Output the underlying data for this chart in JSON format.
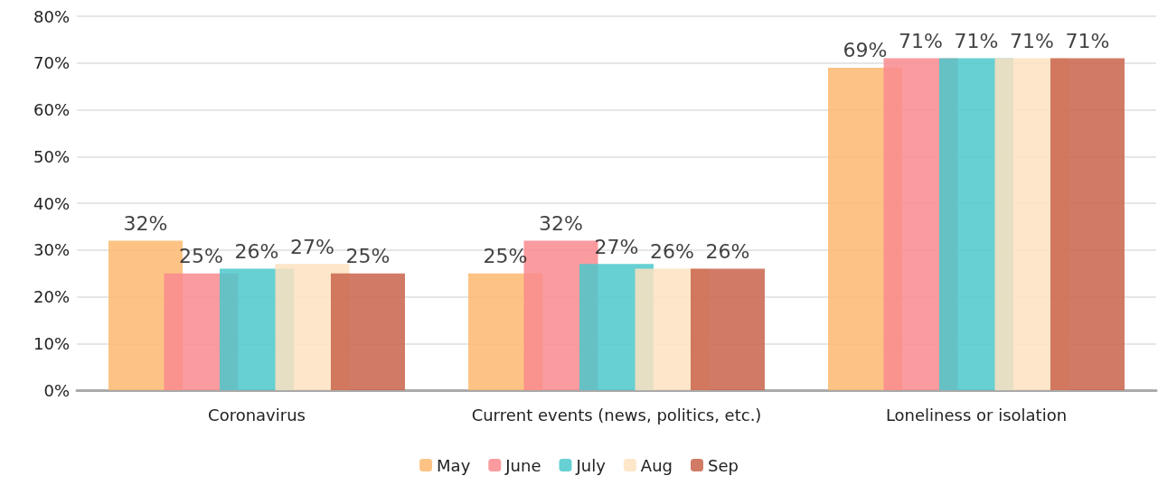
{
  "chart_data": {
    "type": "bar",
    "categories": [
      "Coronavirus",
      "Current events (news, politics, etc.)",
      "Loneliness or isolation"
    ],
    "series": [
      {
        "name": "May",
        "color": "#fdb96e",
        "values": [
          32,
          25,
          69
        ],
        "value_labels": [
          "32%",
          "25%",
          "69%"
        ]
      },
      {
        "name": "June",
        "color": "#f98a8e",
        "values": [
          25,
          32,
          71
        ],
        "value_labels": [
          "25%",
          "32%",
          "71%"
        ]
      },
      {
        "name": "July",
        "color": "#4bc8cb",
        "values": [
          26,
          27,
          71
        ],
        "value_labels": [
          "26%",
          "27%",
          "71%"
        ]
      },
      {
        "name": "Aug",
        "color": "#fde2c0",
        "values": [
          27,
          26,
          71
        ],
        "value_labels": [
          "27%",
          "26%",
          "71%"
        ]
      },
      {
        "name": "Sep",
        "color": "#c9644b",
        "values": [
          25,
          26,
          71
        ],
        "value_labels": [
          "25%",
          "26%",
          "71%"
        ]
      }
    ],
    "ylim": [
      0,
      80
    ],
    "yticks": [
      {
        "value": 0,
        "label": "0%"
      },
      {
        "value": 10,
        "label": "10%"
      },
      {
        "value": 20,
        "label": "20%"
      },
      {
        "value": 30,
        "label": "30%"
      },
      {
        "value": 40,
        "label": "40%"
      },
      {
        "value": 50,
        "label": "50%"
      },
      {
        "value": 60,
        "label": "60%"
      },
      {
        "value": 70,
        "label": "70%"
      },
      {
        "value": 80,
        "label": "80%"
      }
    ],
    "grid": "y",
    "legend": "bottom"
  }
}
